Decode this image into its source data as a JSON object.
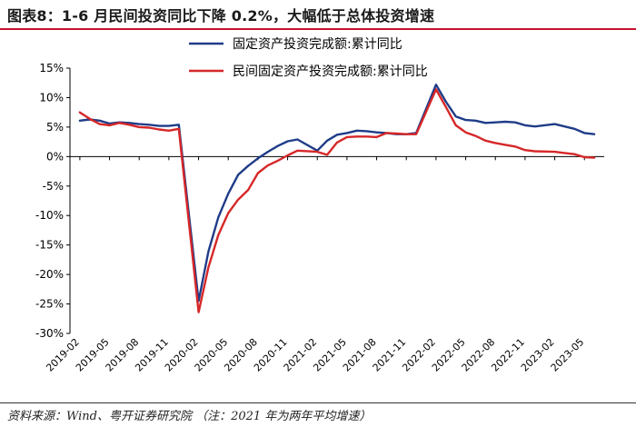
{
  "figure": {
    "title": "图表8：1-6 月民间投资同比下降 0.2%，大幅低于总体投资增速",
    "source": "资料来源：Wind、粤开证券研究院    （注：2021 年为两年平均增速）"
  },
  "chart_data": {
    "type": "line",
    "title": "",
    "xlabel": "",
    "ylabel": "",
    "ylim": [
      -30,
      15
    ],
    "yticks": [
      {
        "value": 15,
        "label": "15%"
      },
      {
        "value": 10,
        "label": "10%"
      },
      {
        "value": 5,
        "label": "5%"
      },
      {
        "value": 0,
        "label": "0%"
      },
      {
        "value": -5,
        "label": "-5%"
      },
      {
        "value": -10,
        "label": "-10%"
      },
      {
        "value": -15,
        "label": "-15%"
      },
      {
        "value": -20,
        "label": "-20%"
      },
      {
        "value": -25,
        "label": "-25%"
      },
      {
        "value": -30,
        "label": "-30%"
      }
    ],
    "xticks": [
      "2019-02",
      "2019-05",
      "2019-08",
      "2019-11",
      "2020-02",
      "2020-05",
      "2020-08",
      "2020-11",
      "2021-02",
      "2021-05",
      "2021-08",
      "2021-11",
      "2022-02",
      "2022-05",
      "2022-08",
      "2022-11",
      "2023-02",
      "2023-05"
    ],
    "x": [
      "2019-02",
      "2019-03",
      "2019-04",
      "2019-05",
      "2019-06",
      "2019-07",
      "2019-08",
      "2019-09",
      "2019-10",
      "2019-11",
      "2019-12",
      "2020-02",
      "2020-03",
      "2020-04",
      "2020-05",
      "2020-06",
      "2020-07",
      "2020-08",
      "2020-09",
      "2020-10",
      "2020-11",
      "2020-12",
      "2021-02",
      "2021-03",
      "2021-04",
      "2021-05",
      "2021-06",
      "2021-07",
      "2021-08",
      "2021-09",
      "2021-10",
      "2021-11",
      "2021-12",
      "2022-02",
      "2022-03",
      "2022-04",
      "2022-05",
      "2022-06",
      "2022-07",
      "2022-08",
      "2022-09",
      "2022-10",
      "2022-11",
      "2022-12",
      "2023-02",
      "2023-03",
      "2023-04",
      "2023-05",
      "2023-06"
    ],
    "series": [
      {
        "name": "固定资产投资完成额:累计同比",
        "color": "#1f3c88",
        "values": [
          6.1,
          6.3,
          6.1,
          5.6,
          5.8,
          5.7,
          5.5,
          5.4,
          5.2,
          5.2,
          5.4,
          -24.5,
          -16.1,
          -10.3,
          -6.3,
          -3.1,
          -1.6,
          -0.3,
          0.8,
          1.8,
          2.6,
          2.9,
          1.0,
          2.7,
          3.7,
          4.0,
          4.4,
          4.3,
          4.1,
          4.0,
          3.8,
          3.8,
          4.0,
          12.2,
          9.3,
          6.8,
          6.2,
          6.1,
          5.7,
          5.8,
          5.9,
          5.8,
          5.3,
          5.1,
          5.5,
          5.1,
          4.7,
          4.0,
          3.8
        ]
      },
      {
        "name": "民间固定资产投资完成额:累计同比",
        "color": "#d62728",
        "values": [
          7.5,
          6.4,
          5.5,
          5.3,
          5.7,
          5.4,
          5.0,
          4.9,
          4.6,
          4.4,
          4.7,
          -26.4,
          -18.8,
          -13.3,
          -9.6,
          -7.3,
          -5.7,
          -2.8,
          -1.5,
          -0.7,
          0.2,
          1.0,
          0.8,
          0.3,
          2.4,
          3.3,
          3.4,
          3.4,
          3.3,
          4.0,
          3.9,
          3.8,
          3.8,
          11.4,
          8.4,
          5.3,
          4.1,
          3.5,
          2.7,
          2.3,
          2.0,
          1.7,
          1.1,
          0.9,
          0.8,
          0.6,
          0.4,
          -0.1,
          -0.2
        ]
      }
    ],
    "legend": "top-center",
    "grid": false
  }
}
